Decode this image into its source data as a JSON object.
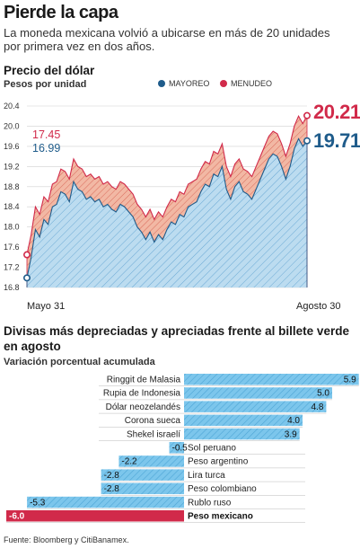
{
  "headline": "Pierde la capa",
  "dek": "La moneda mexicana volvió a ubicarse en más de 20 unidades por primera vez en dos años.",
  "chart1_title": "Precio del dólar",
  "chart1_subtitle": "Pesos por unidad",
  "legend": {
    "mayoreo": "MAYOREO",
    "menudeo": "MENUDEO"
  },
  "chart2_title": "Divisas más depreciadas y apreciadas frente al billete verde en agosto",
  "chart2_subtitle": "Variación porcentual acumulada",
  "source": "Fuente: Bloomberg y CitiBanamex.",
  "colors": {
    "mayoreo": "#1f5c8b",
    "menudeo": "#d12a4a",
    "area_blue": "#bcdcf0",
    "area_red": "#f2b8a4",
    "bar_blue": "#7cc6ec",
    "bar_red": "#d12a4a"
  },
  "chart_data": [
    {
      "type": "area",
      "title": "Precio del dólar",
      "ylabel": "Pesos por unidad",
      "ylim": [
        16.8,
        20.4
      ],
      "yticks": [
        "20.4",
        "20.0",
        "19.6",
        "19.2",
        "18.8",
        "18.4",
        "18.0",
        "17.6",
        "17.2",
        "16.8"
      ],
      "x_labels": [
        "Mayo 31",
        "Agosto 30"
      ],
      "start_labels": {
        "menudeo": "17.45",
        "mayoreo": "16.99"
      },
      "end_labels": {
        "menudeo": "20.21",
        "mayoreo": "19.71"
      },
      "series": [
        {
          "name": "MAYOREO",
          "values": [
            16.99,
            17.4,
            17.95,
            17.8,
            18.15,
            18.05,
            18.4,
            18.45,
            18.7,
            18.65,
            18.5,
            18.9,
            18.75,
            18.7,
            18.55,
            18.6,
            18.5,
            18.55,
            18.4,
            18.45,
            18.35,
            18.3,
            18.45,
            18.4,
            18.3,
            18.2,
            18.0,
            17.9,
            17.75,
            17.9,
            17.7,
            17.85,
            17.75,
            17.95,
            18.1,
            18.05,
            18.25,
            18.2,
            18.4,
            18.45,
            18.5,
            18.7,
            18.85,
            18.8,
            19.05,
            19.0,
            19.2,
            18.75,
            18.55,
            18.8,
            18.9,
            18.7,
            18.65,
            18.55,
            18.75,
            18.95,
            19.15,
            19.35,
            19.45,
            19.4,
            19.2,
            18.95,
            19.2,
            19.55,
            19.75,
            19.6,
            19.71
          ]
        },
        {
          "name": "MENUDEO",
          "values": [
            17.45,
            17.85,
            18.4,
            18.25,
            18.6,
            18.5,
            18.85,
            18.9,
            19.15,
            19.1,
            18.95,
            19.35,
            19.2,
            19.15,
            19.0,
            19.05,
            18.95,
            19.0,
            18.85,
            18.9,
            18.8,
            18.75,
            18.9,
            18.85,
            18.75,
            18.65,
            18.45,
            18.35,
            18.2,
            18.35,
            18.15,
            18.3,
            18.2,
            18.4,
            18.55,
            18.5,
            18.7,
            18.65,
            18.85,
            18.9,
            18.95,
            19.15,
            19.3,
            19.25,
            19.5,
            19.45,
            19.65,
            19.2,
            19.0,
            19.25,
            19.35,
            19.15,
            19.1,
            19.0,
            19.2,
            19.4,
            19.6,
            19.8,
            19.9,
            19.85,
            19.65,
            19.4,
            19.65,
            20.0,
            20.2,
            20.05,
            20.21
          ]
        }
      ]
    },
    {
      "type": "bar",
      "orientation": "horizontal",
      "title": "Divisas más depreciadas y apreciadas frente al billete verde en agosto",
      "xlabel": "Variación porcentual acumulada",
      "categories": [
        "Ringgit de Malasia",
        "Rupia de Indonesia",
        "Dólar neozelandés",
        "Corona sueca",
        "Shekel israelí",
        "Sol peruano",
        "Peso argentino",
        "Lira turca",
        "Peso colombiano",
        "Rublo ruso",
        "Peso mexicano"
      ],
      "values": [
        5.9,
        5.0,
        4.8,
        4.0,
        3.9,
        -0.5,
        -2.2,
        -2.8,
        -2.8,
        -5.3,
        -6.0
      ],
      "value_labels": [
        "5.9",
        "5.0",
        "4.8",
        "4.0",
        "3.9",
        "-0.5",
        "-2.2",
        "-2.8",
        "-2.8",
        "-5.3",
        "-6.0"
      ],
      "highlight": "Peso mexicano"
    }
  ]
}
